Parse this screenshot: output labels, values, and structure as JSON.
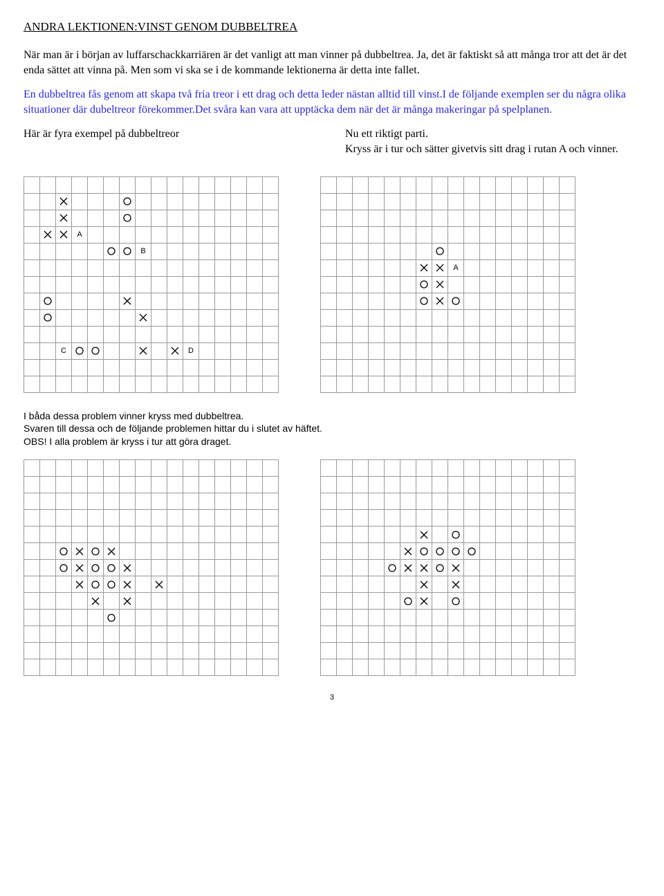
{
  "title": "ANDRA LEKTIONEN:VINST GENOM DUBBELTREA",
  "para1": "När man är i början av luffarschackkarriären är det vanligt att man vinner på dubbeltrea. Ja, det är faktiskt så att många tror att det är det enda sättet att vinna på. Men som vi ska se i de kommande lektionerna är detta inte fallet.",
  "para2": "En dubbeltrea fås genom att skapa två fria treor i ett drag och detta leder nästan alltid till vinst.I de följande exemplen ser du några olika situationer där dubeltreor förekommer.Det svåra kan vara att upptäcka dem när det är många makeringar på spelplanen.",
  "leftCaption": "Här är fyra exempel på dubbeltreor",
  "rightCaption1": "Nu ett riktigt parti.",
  "rightCaption2": "Kryss är i tur och sätter givetvis sitt drag i rutan A och vinner.",
  "footer1": "I båda dessa problem vinner kryss med dubbeltrea.",
  "footer2": "Svaren till dessa och de följande problemen hittar du i slutet av häftet.",
  "footer3": "OBS! I alla problem är kryss i tur att göra draget.",
  "pageNum": "3",
  "gridStyle": {
    "cols": 16,
    "rows": 13,
    "cellSize": 21,
    "borderColor": "#999999",
    "xColor": "#000000",
    "oColor": "#000000"
  },
  "gridA": {
    "X": [
      [
        1,
        2
      ],
      [
        2,
        2
      ],
      [
        2,
        1
      ],
      [
        1,
        7
      ],
      [
        2,
        7
      ],
      [
        6,
        7
      ],
      [
        7,
        8
      ],
      [
        7,
        10
      ],
      [
        9,
        10
      ]
    ],
    "O": [
      [
        6,
        1
      ],
      [
        6,
        2
      ],
      [
        5,
        3
      ],
      [
        6,
        3
      ],
      [
        1,
        7
      ],
      [
        2,
        7
      ],
      [
        2,
        10
      ],
      [
        3,
        10
      ],
      [
        4,
        10
      ]
    ],
    "labels": {
      "A": [
        3,
        2
      ],
      "B": [
        7,
        3
      ],
      "C": [
        1,
        10
      ],
      "D": [
        10,
        10
      ]
    },
    "comment": "overrides below"
  },
  "gridB": {
    "X": [
      [
        6,
        5
      ],
      [
        7,
        5
      ],
      [
        7,
        6
      ],
      [
        6,
        7
      ],
      [
        7,
        7
      ]
    ],
    "O": [
      [
        7,
        4
      ],
      [
        6,
        6
      ],
      [
        8,
        7
      ],
      [
        6,
        7
      ]
    ],
    "labels": {
      "A": [
        8,
        5
      ]
    }
  },
  "gridC": {
    "X": [
      [
        3,
        5
      ],
      [
        5,
        5
      ],
      [
        3,
        6
      ],
      [
        6,
        6
      ],
      [
        4,
        7
      ],
      [
        6,
        7
      ],
      [
        8,
        7
      ],
      [
        4,
        8
      ],
      [
        6,
        8
      ]
    ],
    "O": [
      [
        2,
        5
      ],
      [
        4,
        5
      ],
      [
        2,
        6
      ],
      [
        4,
        6
      ],
      [
        5,
        6
      ],
      [
        3,
        7
      ],
      [
        5,
        7
      ],
      [
        5,
        8
      ]
    ]
  },
  "gridD": {
    "X": [
      [
        6,
        4
      ],
      [
        5,
        5
      ],
      [
        7,
        5
      ],
      [
        5,
        6
      ],
      [
        6,
        6
      ],
      [
        7,
        6
      ],
      [
        6,
        7
      ],
      [
        6,
        8
      ],
      [
        8,
        8
      ]
    ],
    "O": [
      [
        8,
        4
      ],
      [
        6,
        5
      ],
      [
        8,
        5
      ],
      [
        9,
        5
      ],
      [
        4,
        6
      ],
      [
        8,
        6
      ],
      [
        5,
        8
      ],
      [
        7,
        8
      ]
    ]
  }
}
